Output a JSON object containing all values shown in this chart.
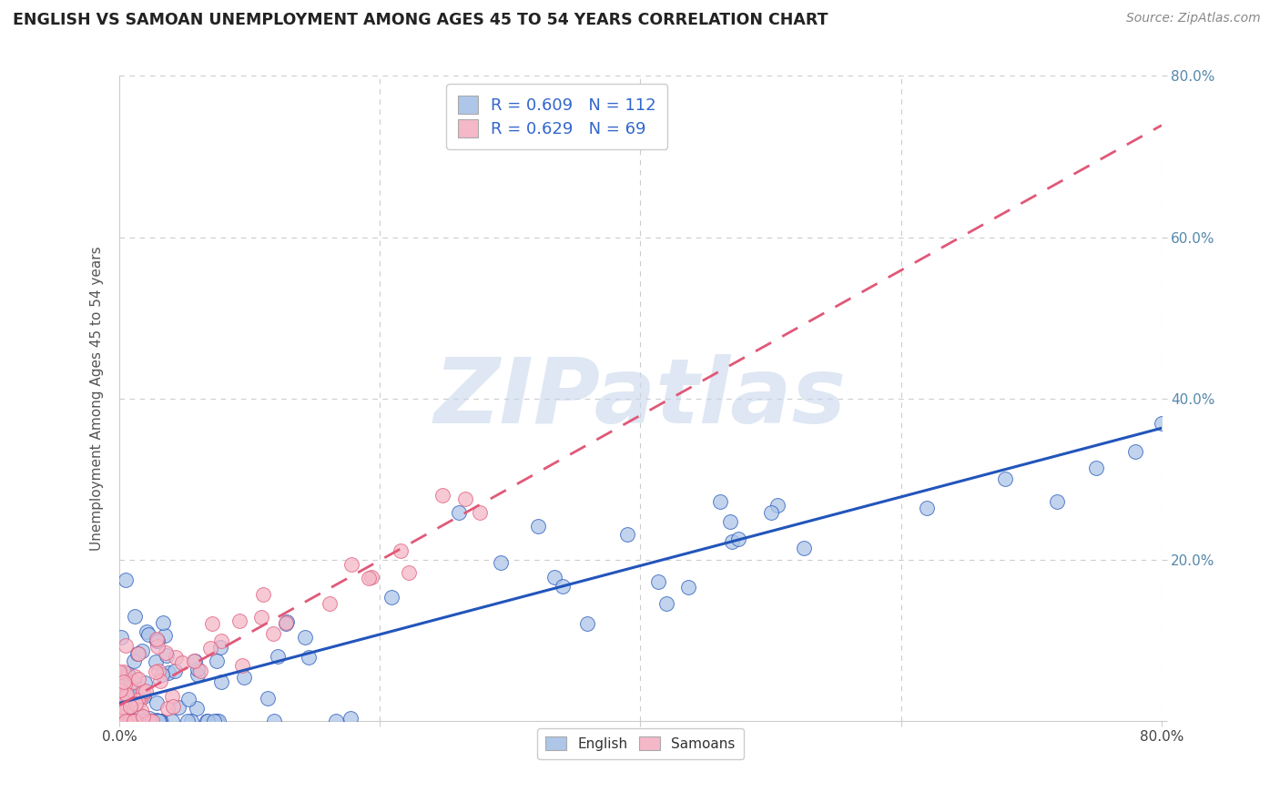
{
  "title": "ENGLISH VS SAMOAN UNEMPLOYMENT AMONG AGES 45 TO 54 YEARS CORRELATION CHART",
  "source": "Source: ZipAtlas.com",
  "ylabel": "Unemployment Among Ages 45 to 54 years",
  "xlim": [
    0,
    0.8
  ],
  "ylim": [
    0,
    0.8
  ],
  "english_R": 0.609,
  "english_N": 112,
  "samoan_R": 0.629,
  "samoan_N": 69,
  "english_color": "#aec6e8",
  "samoan_color": "#f4b8c8",
  "english_line_color": "#2255bb",
  "samoan_line_color": "#e05878",
  "watermark": "ZIPatlas",
  "watermark_color": "#c8d8ec",
  "grid_color": "#cccccc",
  "title_color": "#222222",
  "source_color": "#888888",
  "ytick_color": "#5588aa"
}
